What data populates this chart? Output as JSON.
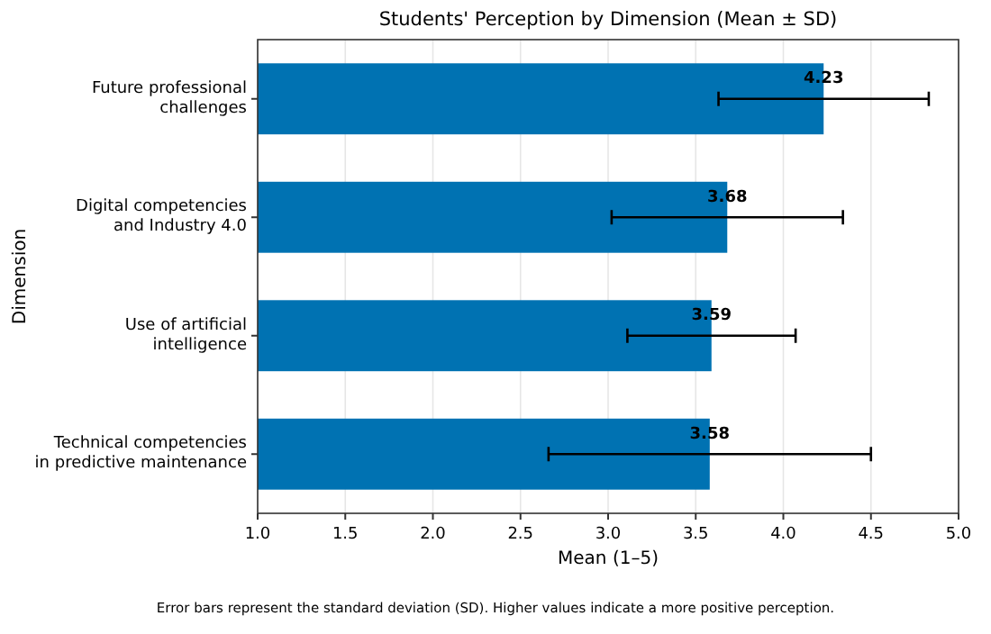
{
  "chart_data": {
    "type": "bar",
    "orientation": "horizontal",
    "title": "Students' Perception by Dimension (Mean ± SD)",
    "xlabel": "Mean (1–5)",
    "ylabel": "Dimension",
    "categories": [
      "Future professional\nchallenges",
      "Digital competencies\nand Industry 4.0",
      "Use of artificial\nintelligence",
      "Technical competencies\nin predictive maintenance"
    ],
    "values": [
      4.23,
      3.68,
      3.59,
      3.58
    ],
    "errors": [
      0.6,
      0.66,
      0.48,
      0.92
    ],
    "color": "#0072b2",
    "data_labels": true,
    "grid": "x",
    "xlim": [
      1.0,
      5.0
    ],
    "xticks": [
      {
        "value": 1,
        "label": "1.0"
      },
      {
        "value": 1.5,
        "label": "1.5"
      },
      {
        "value": 2,
        "label": "2.0"
      },
      {
        "value": 2.5,
        "label": "2.5"
      },
      {
        "value": 3,
        "label": "3.0"
      },
      {
        "value": 3.5,
        "label": "3.5"
      },
      {
        "value": 4,
        "label": "4.0"
      },
      {
        "value": 4.5,
        "label": "4.5"
      },
      {
        "value": 5,
        "label": "5.0"
      }
    ],
    "annotations": [
      "Error bars represent the standard deviation (SD). Higher values indicate a more positive perception."
    ]
  }
}
